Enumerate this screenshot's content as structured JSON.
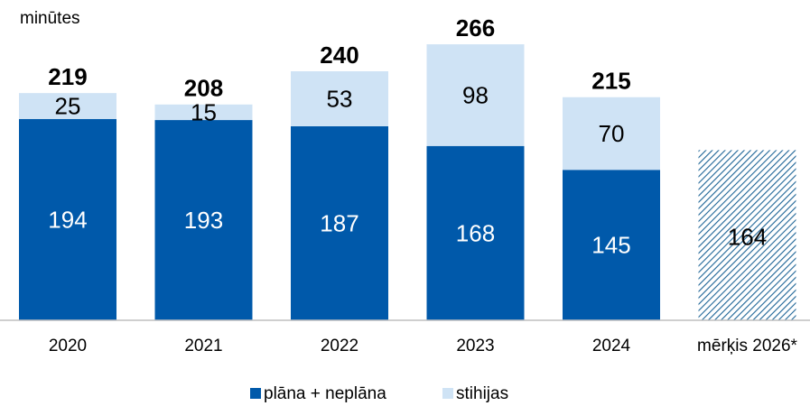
{
  "chart_data": {
    "type": "stacked_bar",
    "y_label": "minūtes",
    "categories": [
      "2020",
      "2021",
      "2022",
      "2023",
      "2024",
      "mērķis 2026*"
    ],
    "series": [
      {
        "name": "plāna + neplāna",
        "color": "#0059aa",
        "values": [
          194,
          193,
          187,
          168,
          145,
          null
        ]
      },
      {
        "name": "stihijas",
        "color": "#cfe3f5",
        "values": [
          25,
          15,
          53,
          98,
          70,
          null
        ]
      }
    ],
    "totals": [
      219,
      208,
      240,
      266,
      215,
      null
    ],
    "target_values": [
      null,
      null,
      null,
      null,
      null,
      164
    ],
    "target_color": "#1d6496"
  }
}
